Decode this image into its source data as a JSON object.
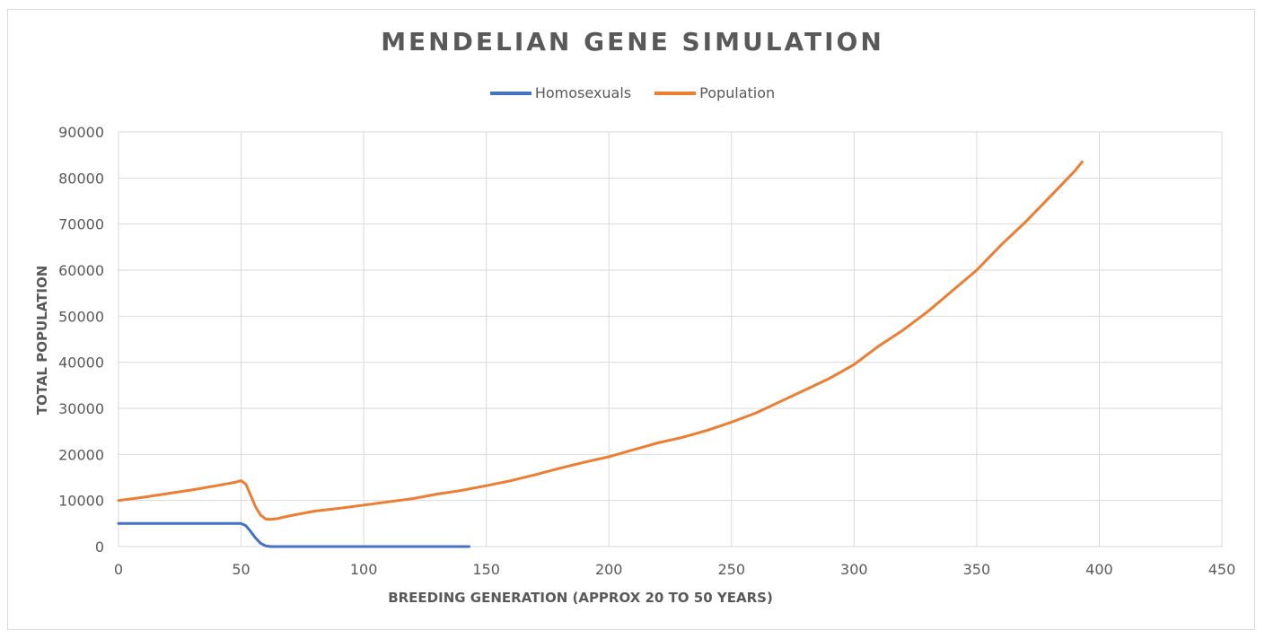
{
  "chart_data": {
    "type": "line",
    "title": "MENDELIAN GENE SIMULATION",
    "xlabel": "BREEDING GENERATION (APPROX 20 TO 50 YEARS)",
    "ylabel": "TOTAL POPULATION",
    "xlim": [
      0,
      450
    ],
    "ylim": [
      0,
      90000
    ],
    "x_ticks": [
      0,
      50,
      100,
      150,
      200,
      250,
      300,
      350,
      400,
      450
    ],
    "y_ticks": [
      0,
      10000,
      20000,
      30000,
      40000,
      50000,
      60000,
      70000,
      80000,
      90000
    ],
    "grid": true,
    "legend_position": "top",
    "series": [
      {
        "name": "Homosexuals",
        "color": "#4472c4",
        "points": [
          [
            0,
            5000
          ],
          [
            50,
            5000
          ],
          [
            52,
            4500
          ],
          [
            54,
            3200
          ],
          [
            56,
            1800
          ],
          [
            58,
            700
          ],
          [
            60,
            150
          ],
          [
            62,
            0
          ],
          [
            143,
            0
          ]
        ]
      },
      {
        "name": "Population",
        "color": "#ed7d31",
        "points": [
          [
            0,
            10000
          ],
          [
            10,
            10700
          ],
          [
            20,
            11500
          ],
          [
            30,
            12300
          ],
          [
            40,
            13200
          ],
          [
            48,
            14000
          ],
          [
            50,
            14300
          ],
          [
            52,
            13500
          ],
          [
            54,
            11000
          ],
          [
            56,
            8500
          ],
          [
            58,
            6800
          ],
          [
            60,
            6000
          ],
          [
            62,
            5900
          ],
          [
            65,
            6100
          ],
          [
            70,
            6700
          ],
          [
            80,
            7700
          ],
          [
            90,
            8300
          ],
          [
            100,
            9000
          ],
          [
            110,
            9700
          ],
          [
            120,
            10400
          ],
          [
            130,
            11400
          ],
          [
            140,
            12200
          ],
          [
            150,
            13200
          ],
          [
            160,
            14300
          ],
          [
            170,
            15600
          ],
          [
            180,
            17000
          ],
          [
            190,
            18300
          ],
          [
            200,
            19500
          ],
          [
            210,
            21000
          ],
          [
            220,
            22500
          ],
          [
            230,
            23700
          ],
          [
            240,
            25200
          ],
          [
            250,
            27000
          ],
          [
            260,
            29000
          ],
          [
            270,
            31500
          ],
          [
            280,
            34000
          ],
          [
            290,
            36500
          ],
          [
            300,
            39500
          ],
          [
            310,
            43500
          ],
          [
            320,
            47000
          ],
          [
            330,
            51000
          ],
          [
            340,
            55500
          ],
          [
            350,
            60000
          ],
          [
            360,
            65500
          ],
          [
            370,
            70500
          ],
          [
            380,
            76000
          ],
          [
            390,
            81500
          ],
          [
            393,
            83500
          ]
        ]
      }
    ]
  }
}
